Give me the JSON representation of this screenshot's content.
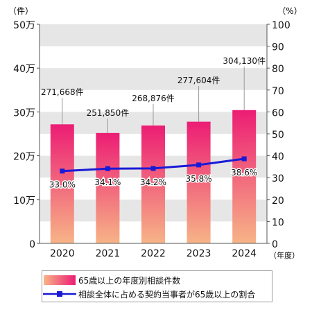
{
  "chart_data": {
    "type": "bar",
    "categories": [
      "2020",
      "2021",
      "2022",
      "2023",
      "2024"
    ],
    "series": [
      {
        "name": "65歳以上の年度別相談件数",
        "kind": "bar",
        "axis": "left",
        "values": [
          271668,
          251850,
          268876,
          277604,
          304130
        ],
        "labels": [
          "271,668件",
          "251,850件",
          "268,876件",
          "277,604件",
          "304,130件"
        ],
        "gradient": [
          "#f7b487",
          "#ec1d74"
        ]
      },
      {
        "name": "相談全体に占める契約当事者が65歳以上の割合",
        "kind": "line",
        "axis": "right",
        "values": [
          33.0,
          34.1,
          34.2,
          35.8,
          38.6
        ],
        "labels": [
          "33.0%",
          "34.1%",
          "34.2%",
          "35.8%",
          "38.6%"
        ],
        "color": "#1a1ad6"
      }
    ],
    "left_axis": {
      "unit": "（件）",
      "ylim": [
        0,
        500000
      ],
      "ticks": [
        0,
        100000,
        200000,
        300000,
        400000,
        500000
      ],
      "tick_labels": [
        "0",
        "10万",
        "20万",
        "30万",
        "40万",
        "50万"
      ]
    },
    "right_axis": {
      "unit": "（%）",
      "ylim": [
        0,
        100
      ],
      "ticks": [
        0,
        10,
        20,
        30,
        40,
        50,
        60,
        70,
        80,
        90,
        100
      ],
      "tick_labels": [
        "0",
        "10",
        "20",
        "30",
        "40",
        "50",
        "60",
        "70",
        "80",
        "90",
        "100"
      ]
    },
    "x_unit": "（年度）",
    "legend_position": "bottom",
    "grid": "alternating bands",
    "band_color": "#e6e6e6"
  },
  "legend": {
    "bar_label": "65歳以上の年度別相談件数",
    "line_label": "相談全体に占める契約当事者が65歳以上の割合"
  }
}
